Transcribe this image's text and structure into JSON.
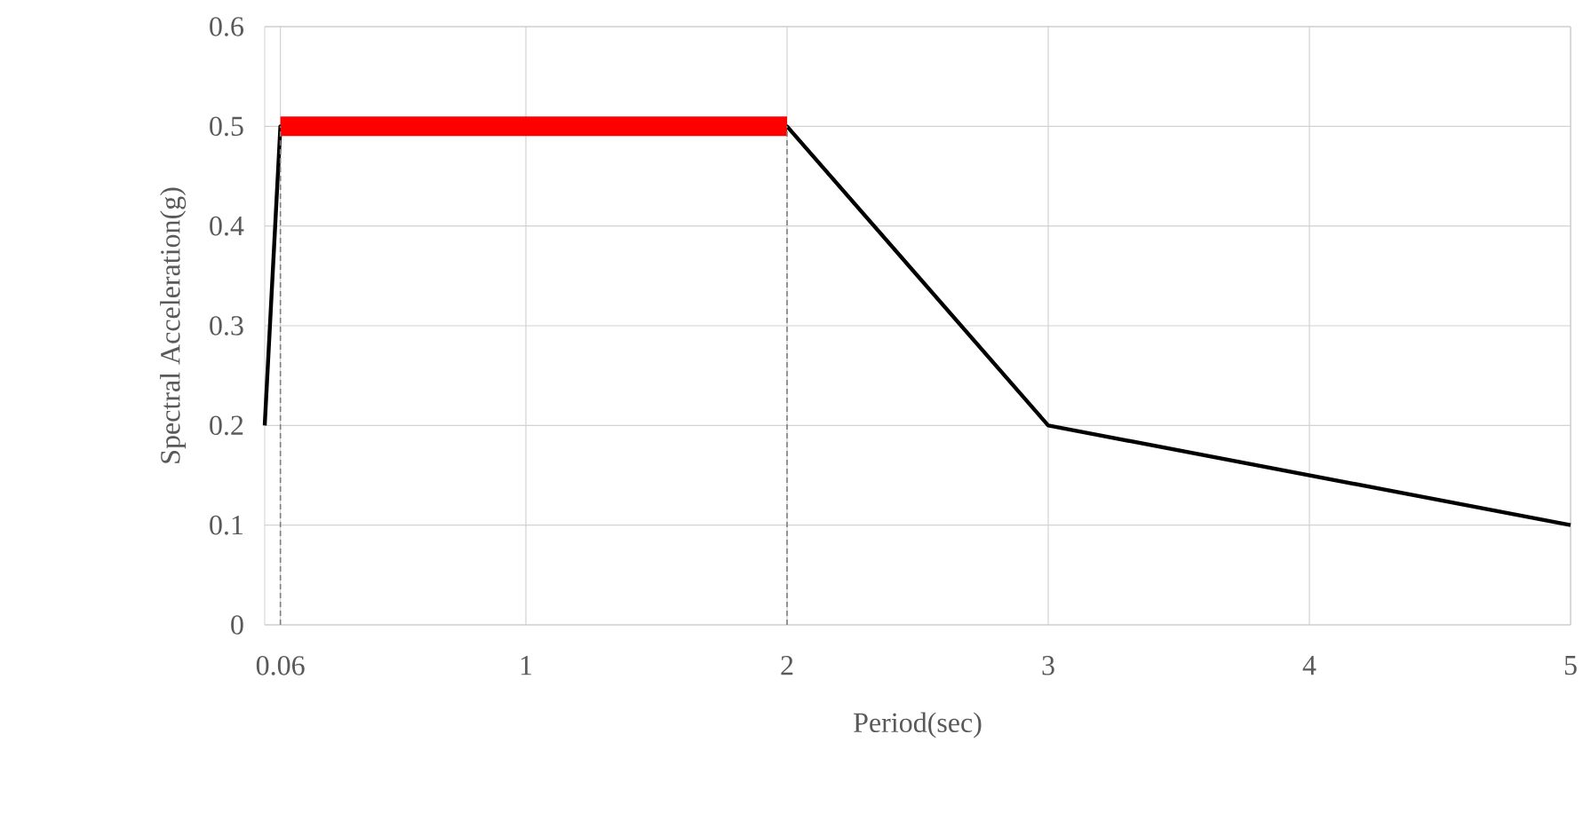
{
  "chart_data": {
    "type": "line",
    "xlabel": "Period(sec)",
    "ylabel": "Spectral Acceleration(g)",
    "xlim": [
      0,
      5
    ],
    "xticks": [
      0.06,
      1,
      2,
      3,
      4,
      5
    ],
    "ylim": [
      0,
      0.6
    ],
    "yticks": [
      0,
      0.1,
      0.2,
      0.3,
      0.4,
      0.5,
      0.6
    ],
    "grid": true,
    "marker": "none",
    "series": [
      {
        "color": "#000000",
        "x": [
          0,
          0.06,
          2,
          3,
          5
        ],
        "values": [
          0.2,
          0.5,
          0.5,
          0.2,
          0.1
        ]
      },
      {
        "color": "#ff0000",
        "x": [
          0.06,
          2
        ],
        "values": [
          0.5,
          0.5
        ]
      },
      {
        "color": "#808080",
        "x": [
          0.06,
          0.06
        ],
        "values": [
          0,
          0.5
        ],
        "line_style": "dashed"
      },
      {
        "color": "#808080",
        "x": [
          2,
          2
        ],
        "values": [
          0,
          0.5
        ],
        "line_style": "dashed"
      }
    ]
  }
}
